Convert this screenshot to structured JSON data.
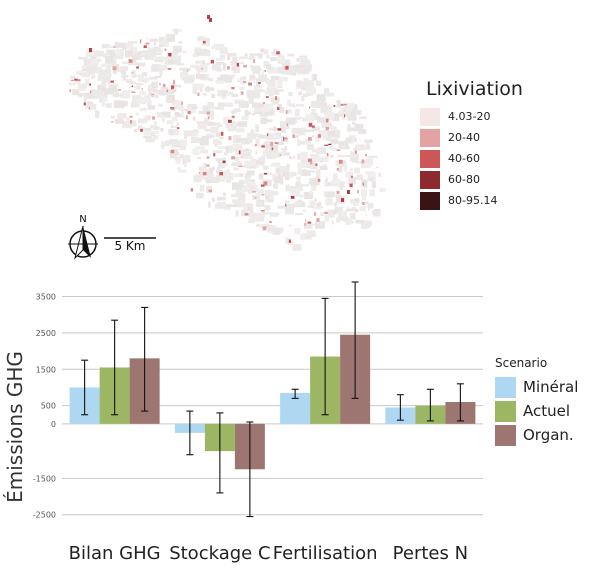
{
  "map": {
    "north_label": "N",
    "scale_label": "5 Km",
    "legend_title": "Lixiviation",
    "legend_items": [
      {
        "label": "4.03-20",
        "color": "#f6e7e7"
      },
      {
        "label": "20-40",
        "color": "#e3a3a3"
      },
      {
        "label": "40-60",
        "color": "#cd5656"
      },
      {
        "label": "60-80",
        "color": "#8e2a2d"
      },
      {
        "label": "80-95.14",
        "color": "#3a1414"
      }
    ]
  },
  "chart_data": {
    "type": "bar",
    "categories": [
      "Bilan GHG",
      "Stockage C",
      "Fertilisation",
      "Pertes N"
    ],
    "ylabel": "Émissions GHG",
    "xlabel": "",
    "ylim": [
      -2700,
      3900
    ],
    "yticks": [
      3500,
      2500,
      1500,
      500,
      0,
      -1500,
      -2500
    ],
    "grid": true,
    "legend_title": "Scenario",
    "legend_position": "right",
    "series": [
      {
        "name": "Minéral",
        "color": "#aed8f2",
        "values": [
          1000,
          -250,
          850,
          450
        ],
        "err_low": [
          250,
          -850,
          700,
          100
        ],
        "err_high": [
          1750,
          350,
          950,
          800
        ]
      },
      {
        "name": "Actuel",
        "color": "#9cb663",
        "values": [
          1550,
          -750,
          1850,
          500
        ],
        "err_low": [
          250,
          -1900,
          250,
          80
        ],
        "err_high": [
          2850,
          300,
          3450,
          950
        ]
      },
      {
        "name": "Organ.",
        "color": "#9e7671",
        "values": [
          1800,
          -1250,
          2450,
          600
        ],
        "err_low": [
          350,
          -2550,
          700,
          80
        ],
        "err_high": [
          3200,
          50,
          3900,
          1100
        ]
      }
    ]
  }
}
